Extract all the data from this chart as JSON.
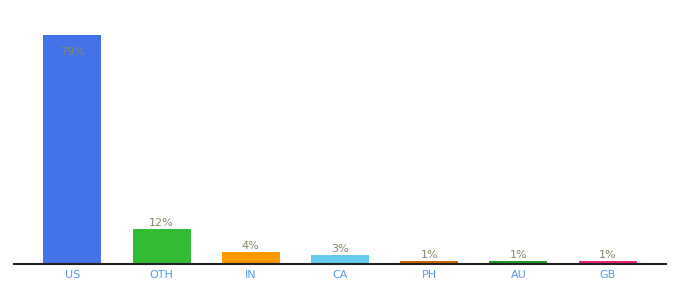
{
  "categories": [
    "US",
    "OTH",
    "IN",
    "CA",
    "PH",
    "AU",
    "GB"
  ],
  "values": [
    79,
    12,
    4,
    3,
    1,
    1,
    1
  ],
  "labels": [
    "79%",
    "12%",
    "4%",
    "3%",
    "1%",
    "1%",
    "1%"
  ],
  "bar_colors": [
    "#4472e8",
    "#33bb33",
    "#ff9900",
    "#66ccee",
    "#cc6600",
    "#229922",
    "#ee2277"
  ],
  "background_color": "#ffffff",
  "label_color": "#888866",
  "axis_color": "#5599ee",
  "ylim": [
    0,
    88
  ],
  "label_fontsize": 8,
  "tick_fontsize": 8
}
